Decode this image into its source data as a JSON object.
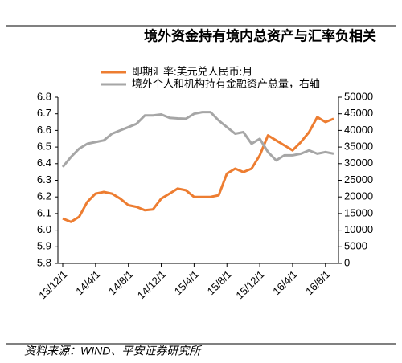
{
  "chart_data": {
    "type": "line",
    "title": "境外资金持有境内总资产与汇率负相关",
    "source": "资料来源：WIND、平安证券研究所",
    "categories": [
      "13/12/1",
      null,
      null,
      null,
      "14/4/1",
      null,
      null,
      null,
      "14/8/1",
      null,
      null,
      null,
      "14/12/1",
      null,
      null,
      null,
      "15/4/1",
      null,
      null,
      null,
      "15/8/1",
      null,
      null,
      null,
      "15/12/1",
      null,
      null,
      null,
      "16/4/1",
      null,
      null,
      null,
      "16/8/1",
      null
    ],
    "series": [
      {
        "name": "即期汇率:美元兑人民币:月",
        "color": "#ed7d31",
        "values": [
          6.07,
          6.05,
          6.08,
          6.17,
          6.22,
          6.23,
          6.22,
          6.19,
          6.15,
          6.14,
          6.12,
          6.125,
          6.19,
          6.22,
          6.25,
          6.24,
          6.2,
          6.2,
          6.2,
          6.21,
          6.34,
          6.37,
          6.35,
          6.37,
          6.45,
          6.57,
          6.54,
          6.51,
          6.48,
          6.53,
          6.59,
          6.68,
          6.65,
          6.67
        ]
      },
      {
        "name": "境外个人和机构持有金融资产总量，右轴",
        "color": "#a6a6a6",
        "axis": "y2",
        "values": [
          29000,
          32000,
          34500,
          36000,
          36500,
          37000,
          39000,
          40000,
          41000,
          42000,
          44500,
          44500,
          44800,
          43800,
          43600,
          43500,
          45000,
          45500,
          45500,
          43000,
          41000,
          39000,
          39500,
          36000,
          37500,
          33500,
          31000,
          32500,
          32500,
          33000,
          34000,
          33000,
          33500,
          33000
        ]
      }
    ],
    "ylim": [
      5.8,
      6.8
    ],
    "yticks": [
      5.8,
      5.9,
      {
        "value": 6,
        "label": "6.0"
      },
      6.1,
      6.2,
      6.3,
      6.4,
      6.5,
      6.6,
      6.7,
      6.8
    ],
    "y2lim": [
      0,
      50000
    ],
    "y2ticks": [
      0,
      5000,
      10000,
      15000,
      20000,
      25000,
      30000,
      35000,
      40000,
      45000,
      50000
    ]
  }
}
